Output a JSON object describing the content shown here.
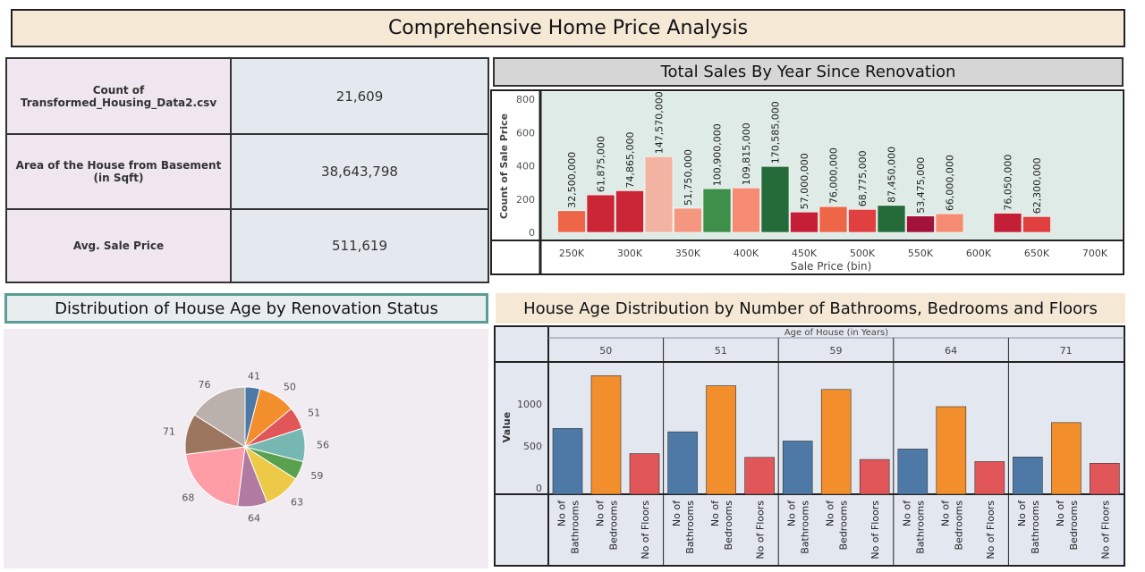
{
  "page": {
    "title": "Comprehensive Home Price Analysis"
  },
  "kpis": [
    {
      "label": "Count of Transformed_Housing_Data2.csv",
      "value": "21,609"
    },
    {
      "label": "Area of the House from Basement (in Sqft)",
      "value": "38,643,798"
    },
    {
      "label": "Avg. Sale Price",
      "value": "511,619"
    }
  ],
  "chart_data": [
    {
      "type": "bar",
      "title": "Total Sales By Year Since Renovation",
      "xlabel": "Sale Price (bin)",
      "ylabel": "Count of Sale Price",
      "ylim": [
        0,
        800
      ],
      "y_ticks": [
        0,
        200,
        400,
        600,
        800
      ],
      "x_ticks": [
        "250K",
        "300K",
        "350K",
        "400K",
        "450K",
        "500K",
        "550K",
        "600K",
        "650K",
        "700K"
      ],
      "grid": false,
      "bars": [
        {
          "x": 250000,
          "value": 130,
          "label": "32,500,000",
          "color": "#ef6548"
        },
        {
          "x": 275000,
          "value": 225,
          "label": "61,875,000",
          "color": "#cb2636"
        },
        {
          "x": 300000,
          "value": 250,
          "label": "74,865,000",
          "color": "#cb2636"
        },
        {
          "x": 325000,
          "value": 455,
          "label": "147,570,000",
          "color": "#f2b3a3"
        },
        {
          "x": 350000,
          "value": 145,
          "label": "51,750,000",
          "color": "#f49680"
        },
        {
          "x": 375000,
          "value": 262,
          "label": "100,900,000",
          "color": "#3d8f4a"
        },
        {
          "x": 400000,
          "value": 267,
          "label": "109,815,000",
          "color": "#f48b72"
        },
        {
          "x": 425000,
          "value": 396,
          "label": "170,585,000",
          "color": "#256b3a"
        },
        {
          "x": 450000,
          "value": 122,
          "label": "57,000,000",
          "color": "#c41f36"
        },
        {
          "x": 475000,
          "value": 155,
          "label": "76,000,000",
          "color": "#ef6548"
        },
        {
          "x": 500000,
          "value": 138,
          "label": "68,775,000",
          "color": "#e0403f"
        },
        {
          "x": 525000,
          "value": 162,
          "label": "87,450,000",
          "color": "#256b3a"
        },
        {
          "x": 550000,
          "value": 98,
          "label": "53,475,000",
          "color": "#a3123a"
        },
        {
          "x": 575000,
          "value": 112,
          "label": "66,000,000",
          "color": "#f48b72"
        },
        {
          "x": 625000,
          "value": 115,
          "label": "76,050,000",
          "color": "#c41f36"
        },
        {
          "x": 650000,
          "value": 95,
          "label": "62,300,000",
          "color": "#e0403f"
        }
      ]
    },
    {
      "type": "pie",
      "title": "Distribution of House Age by Renovation Status",
      "slices": [
        {
          "label": "41",
          "value": 4,
          "color": "#4e79a7"
        },
        {
          "label": "50",
          "value": 10,
          "color": "#f28e2b"
        },
        {
          "label": "51",
          "value": 6,
          "color": "#e15759"
        },
        {
          "label": "56",
          "value": 9,
          "color": "#76b7b2"
        },
        {
          "label": "59",
          "value": 5,
          "color": "#59a14f"
        },
        {
          "label": "63",
          "value": 10,
          "color": "#edc948"
        },
        {
          "label": "64",
          "value": 8,
          "color": "#b07aa1"
        },
        {
          "label": "68",
          "value": 21,
          "color": "#ff9da7"
        },
        {
          "label": "71",
          "value": 11,
          "color": "#9c755f"
        },
        {
          "label": "76",
          "value": 16,
          "color": "#bab0ac"
        }
      ]
    },
    {
      "type": "bar",
      "title": "House Age Distribution by Number of Bathrooms, Bedrooms and Floors",
      "group_label": "Age of House (in Years)",
      "ylabel": "Value",
      "ylim": [
        0,
        1450
      ],
      "y_ticks": [
        0,
        500,
        1000
      ],
      "groups": [
        "50",
        "51",
        "59",
        "64",
        "71"
      ],
      "categories": [
        "No of Bathrooms",
        "No of Bedrooms",
        "No of Floors"
      ],
      "category_labels": [
        [
          "No of",
          "Bathrooms"
        ],
        [
          "No of",
          "Bedrooms"
        ],
        [
          "No of Floors"
        ]
      ],
      "colors": [
        "#4e79a7",
        "#f28e2b",
        "#e15759"
      ],
      "series": [
        {
          "group": "50",
          "values": [
            710,
            1340,
            410
          ]
        },
        {
          "group": "51",
          "values": [
            670,
            1220,
            365
          ]
        },
        {
          "group": "59",
          "values": [
            560,
            1175,
            340
          ]
        },
        {
          "group": "64",
          "values": [
            465,
            970,
            315
          ]
        },
        {
          "group": "71",
          "values": [
            370,
            780,
            295
          ]
        }
      ]
    }
  ]
}
